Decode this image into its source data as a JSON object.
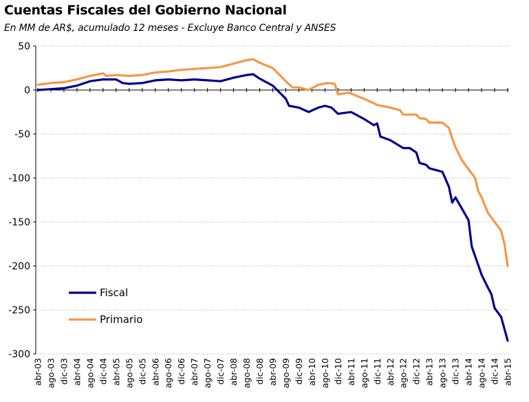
{
  "chart_data": {
    "type": "line",
    "title": "Cuentas Fiscales del Gobierno Nacional",
    "subtitle": "En MM de AR$, acumulado 12 meses - Excluye Banco Central y ANSES",
    "xlabel": "",
    "ylabel": "",
    "ylim": [
      -300,
      50
    ],
    "yticks": [
      50,
      0,
      -50,
      -100,
      -150,
      -200,
      -250,
      -300
    ],
    "grid": true,
    "legend_position": "lower-left",
    "x_tick_labels": [
      "abr-03",
      "ago-03",
      "dic-03",
      "abr-04",
      "ago-04",
      "dic-04",
      "abr-05",
      "ago-05",
      "dic-05",
      "abr-06",
      "ago-06",
      "dic-06",
      "abr-07",
      "ago-07",
      "dic-07",
      "abr-08",
      "ago-08",
      "dic-08",
      "abr-09",
      "ago-09",
      "dic-09",
      "abr-10",
      "ago-10",
      "dic-10",
      "abr-11",
      "ago-11",
      "dic-11",
      "abr-12",
      "ago-12",
      "dic-12",
      "abr-13",
      "ago-13",
      "dic-13",
      "abr-14",
      "ago-14",
      "dic-14",
      "abr-15"
    ],
    "series": [
      {
        "name": "Fiscal",
        "color": "#00008B",
        "points": [
          [
            "abr-03",
            0
          ],
          [
            "ago-03",
            1
          ],
          [
            "dic-03",
            2
          ],
          [
            "abr-04",
            5
          ],
          [
            "ago-04",
            10
          ],
          [
            "dic-04",
            12
          ],
          [
            "abr-05",
            12
          ],
          [
            "jun-05",
            8
          ],
          [
            "ago-05",
            7
          ],
          [
            "dic-05",
            8
          ],
          [
            "abr-06",
            11
          ],
          [
            "ago-06",
            12
          ],
          [
            "dic-06",
            11
          ],
          [
            "abr-07",
            12
          ],
          [
            "ago-07",
            11
          ],
          [
            "dic-07",
            10
          ],
          [
            "abr-08",
            14
          ],
          [
            "ago-08",
            17
          ],
          [
            "oct-08",
            18
          ],
          [
            "dic-08",
            13
          ],
          [
            "abr-09",
            5
          ],
          [
            "ago-09",
            -10
          ],
          [
            "sep-09",
            -18
          ],
          [
            "dic-09",
            -20
          ],
          [
            "mar-10",
            -25
          ],
          [
            "jun-10",
            -20
          ],
          [
            "ago-10",
            -18
          ],
          [
            "oct-10",
            -20
          ],
          [
            "dic-10",
            -27
          ],
          [
            "abr-11",
            -25
          ],
          [
            "ago-11",
            -33
          ],
          [
            "nov-11",
            -40
          ],
          [
            "dic-11",
            -38
          ],
          [
            "ene-12",
            -53
          ],
          [
            "abr-12",
            -57
          ],
          [
            "ago-12",
            -66
          ],
          [
            "oct-12",
            -66
          ],
          [
            "dic-12",
            -71
          ],
          [
            "ene-13",
            -83
          ],
          [
            "mar-13",
            -85
          ],
          [
            "abr-13",
            -89
          ],
          [
            "ago-13",
            -93
          ],
          [
            "oct-13",
            -110
          ],
          [
            "nov-13",
            -128
          ],
          [
            "dic-13",
            -122
          ],
          [
            "feb-14",
            -135
          ],
          [
            "abr-14",
            -148
          ],
          [
            "may-14",
            -178
          ],
          [
            "ago-14",
            -210
          ],
          [
            "oct-14",
            -225
          ],
          [
            "nov-14",
            -232
          ],
          [
            "dic-14",
            -248
          ],
          [
            "feb-15",
            -258
          ],
          [
            "abr-15",
            -285
          ]
        ]
      },
      {
        "name": "Primario",
        "color": "#F79646",
        "points": [
          [
            "abr-03",
            6
          ],
          [
            "ago-03",
            8
          ],
          [
            "dic-03",
            9
          ],
          [
            "abr-04",
            12
          ],
          [
            "ago-04",
            16
          ],
          [
            "dic-04",
            19
          ],
          [
            "ene-05",
            16
          ],
          [
            "abr-05",
            17
          ],
          [
            "ago-05",
            16
          ],
          [
            "dic-05",
            17
          ],
          [
            "abr-06",
            20
          ],
          [
            "ago-06",
            21
          ],
          [
            "dic-06",
            23
          ],
          [
            "abr-07",
            24
          ],
          [
            "ago-07",
            25
          ],
          [
            "dic-07",
            26
          ],
          [
            "abr-08",
            30
          ],
          [
            "ago-08",
            34
          ],
          [
            "oct-08",
            35
          ],
          [
            "dic-08",
            31
          ],
          [
            "abr-09",
            25
          ],
          [
            "ago-09",
            10
          ],
          [
            "oct-09",
            3
          ],
          [
            "dic-09",
            3
          ],
          [
            "mar-10",
            0
          ],
          [
            "jun-10",
            6
          ],
          [
            "sep-10",
            8
          ],
          [
            "nov-10",
            7
          ],
          [
            "dic-10",
            -5
          ],
          [
            "mar-11",
            -3
          ],
          [
            "abr-11",
            -4
          ],
          [
            "ago-11",
            -10
          ],
          [
            "nov-11",
            -15
          ],
          [
            "dic-11",
            -17
          ],
          [
            "abr-12",
            -20
          ],
          [
            "jul-12",
            -23
          ],
          [
            "ago-12",
            -28
          ],
          [
            "dic-12",
            -28
          ],
          [
            "ene-13",
            -32
          ],
          [
            "mar-13",
            -33
          ],
          [
            "abr-13",
            -37
          ],
          [
            "ago-13",
            -37
          ],
          [
            "oct-13",
            -43
          ],
          [
            "nov-13",
            -55
          ],
          [
            "dic-13",
            -65
          ],
          [
            "feb-14",
            -80
          ],
          [
            "abr-14",
            -90
          ],
          [
            "jun-14",
            -100
          ],
          [
            "jul-14",
            -115
          ],
          [
            "ago-14",
            -122
          ],
          [
            "oct-14",
            -140
          ],
          [
            "dic-14",
            -150
          ],
          [
            "feb-15",
            -160
          ],
          [
            "mar-15",
            -175
          ],
          [
            "abr-15",
            -200
          ]
        ]
      }
    ]
  }
}
